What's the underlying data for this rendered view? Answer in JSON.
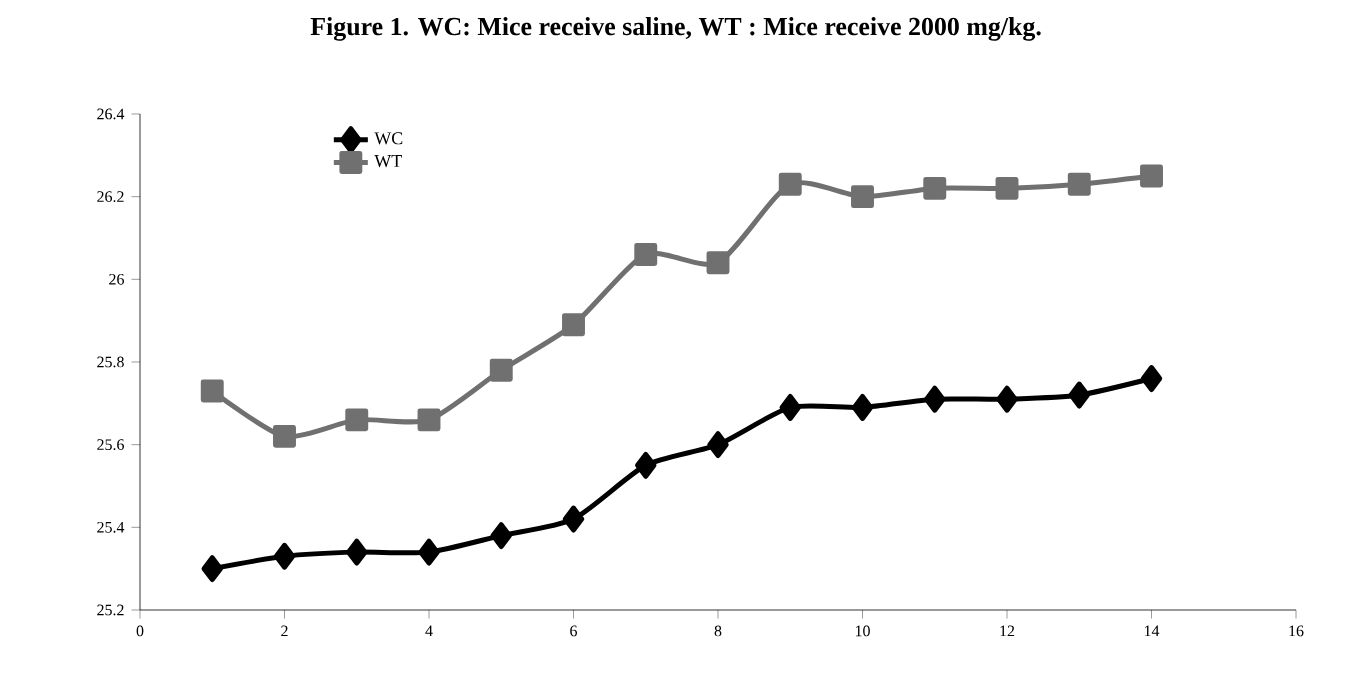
{
  "chart_data": {
    "type": "line",
    "title": "Figure 1. WC: Mice receive saline, WT : Mice receive 2000 mg/kg.",
    "x": [
      1,
      2,
      3,
      4,
      5,
      6,
      7,
      8,
      9,
      10,
      11,
      12,
      13,
      14
    ],
    "series": [
      {
        "name": "WC",
        "color": "#000000",
        "marker": "diamond",
        "values": [
          25.3,
          25.33,
          25.34,
          25.34,
          25.38,
          25.42,
          25.55,
          25.6,
          25.69,
          25.69,
          25.71,
          25.71,
          25.72,
          25.76
        ]
      },
      {
        "name": "WT",
        "color": "#707070",
        "marker": "square",
        "values": [
          25.73,
          25.62,
          25.66,
          25.66,
          25.78,
          25.89,
          26.06,
          26.04,
          26.23,
          26.2,
          26.22,
          26.22,
          26.23,
          26.25
        ]
      }
    ],
    "xlim": [
      0,
      16
    ],
    "xticks": [
      0,
      2,
      4,
      6,
      8,
      10,
      12,
      14,
      16
    ],
    "ylim": [
      25.2,
      26.4
    ],
    "yticks": [
      25.2,
      25.4,
      25.6,
      25.8,
      26,
      26.2,
      26.4
    ],
    "grid": false,
    "legend": "top left",
    "line_style": "solid"
  }
}
